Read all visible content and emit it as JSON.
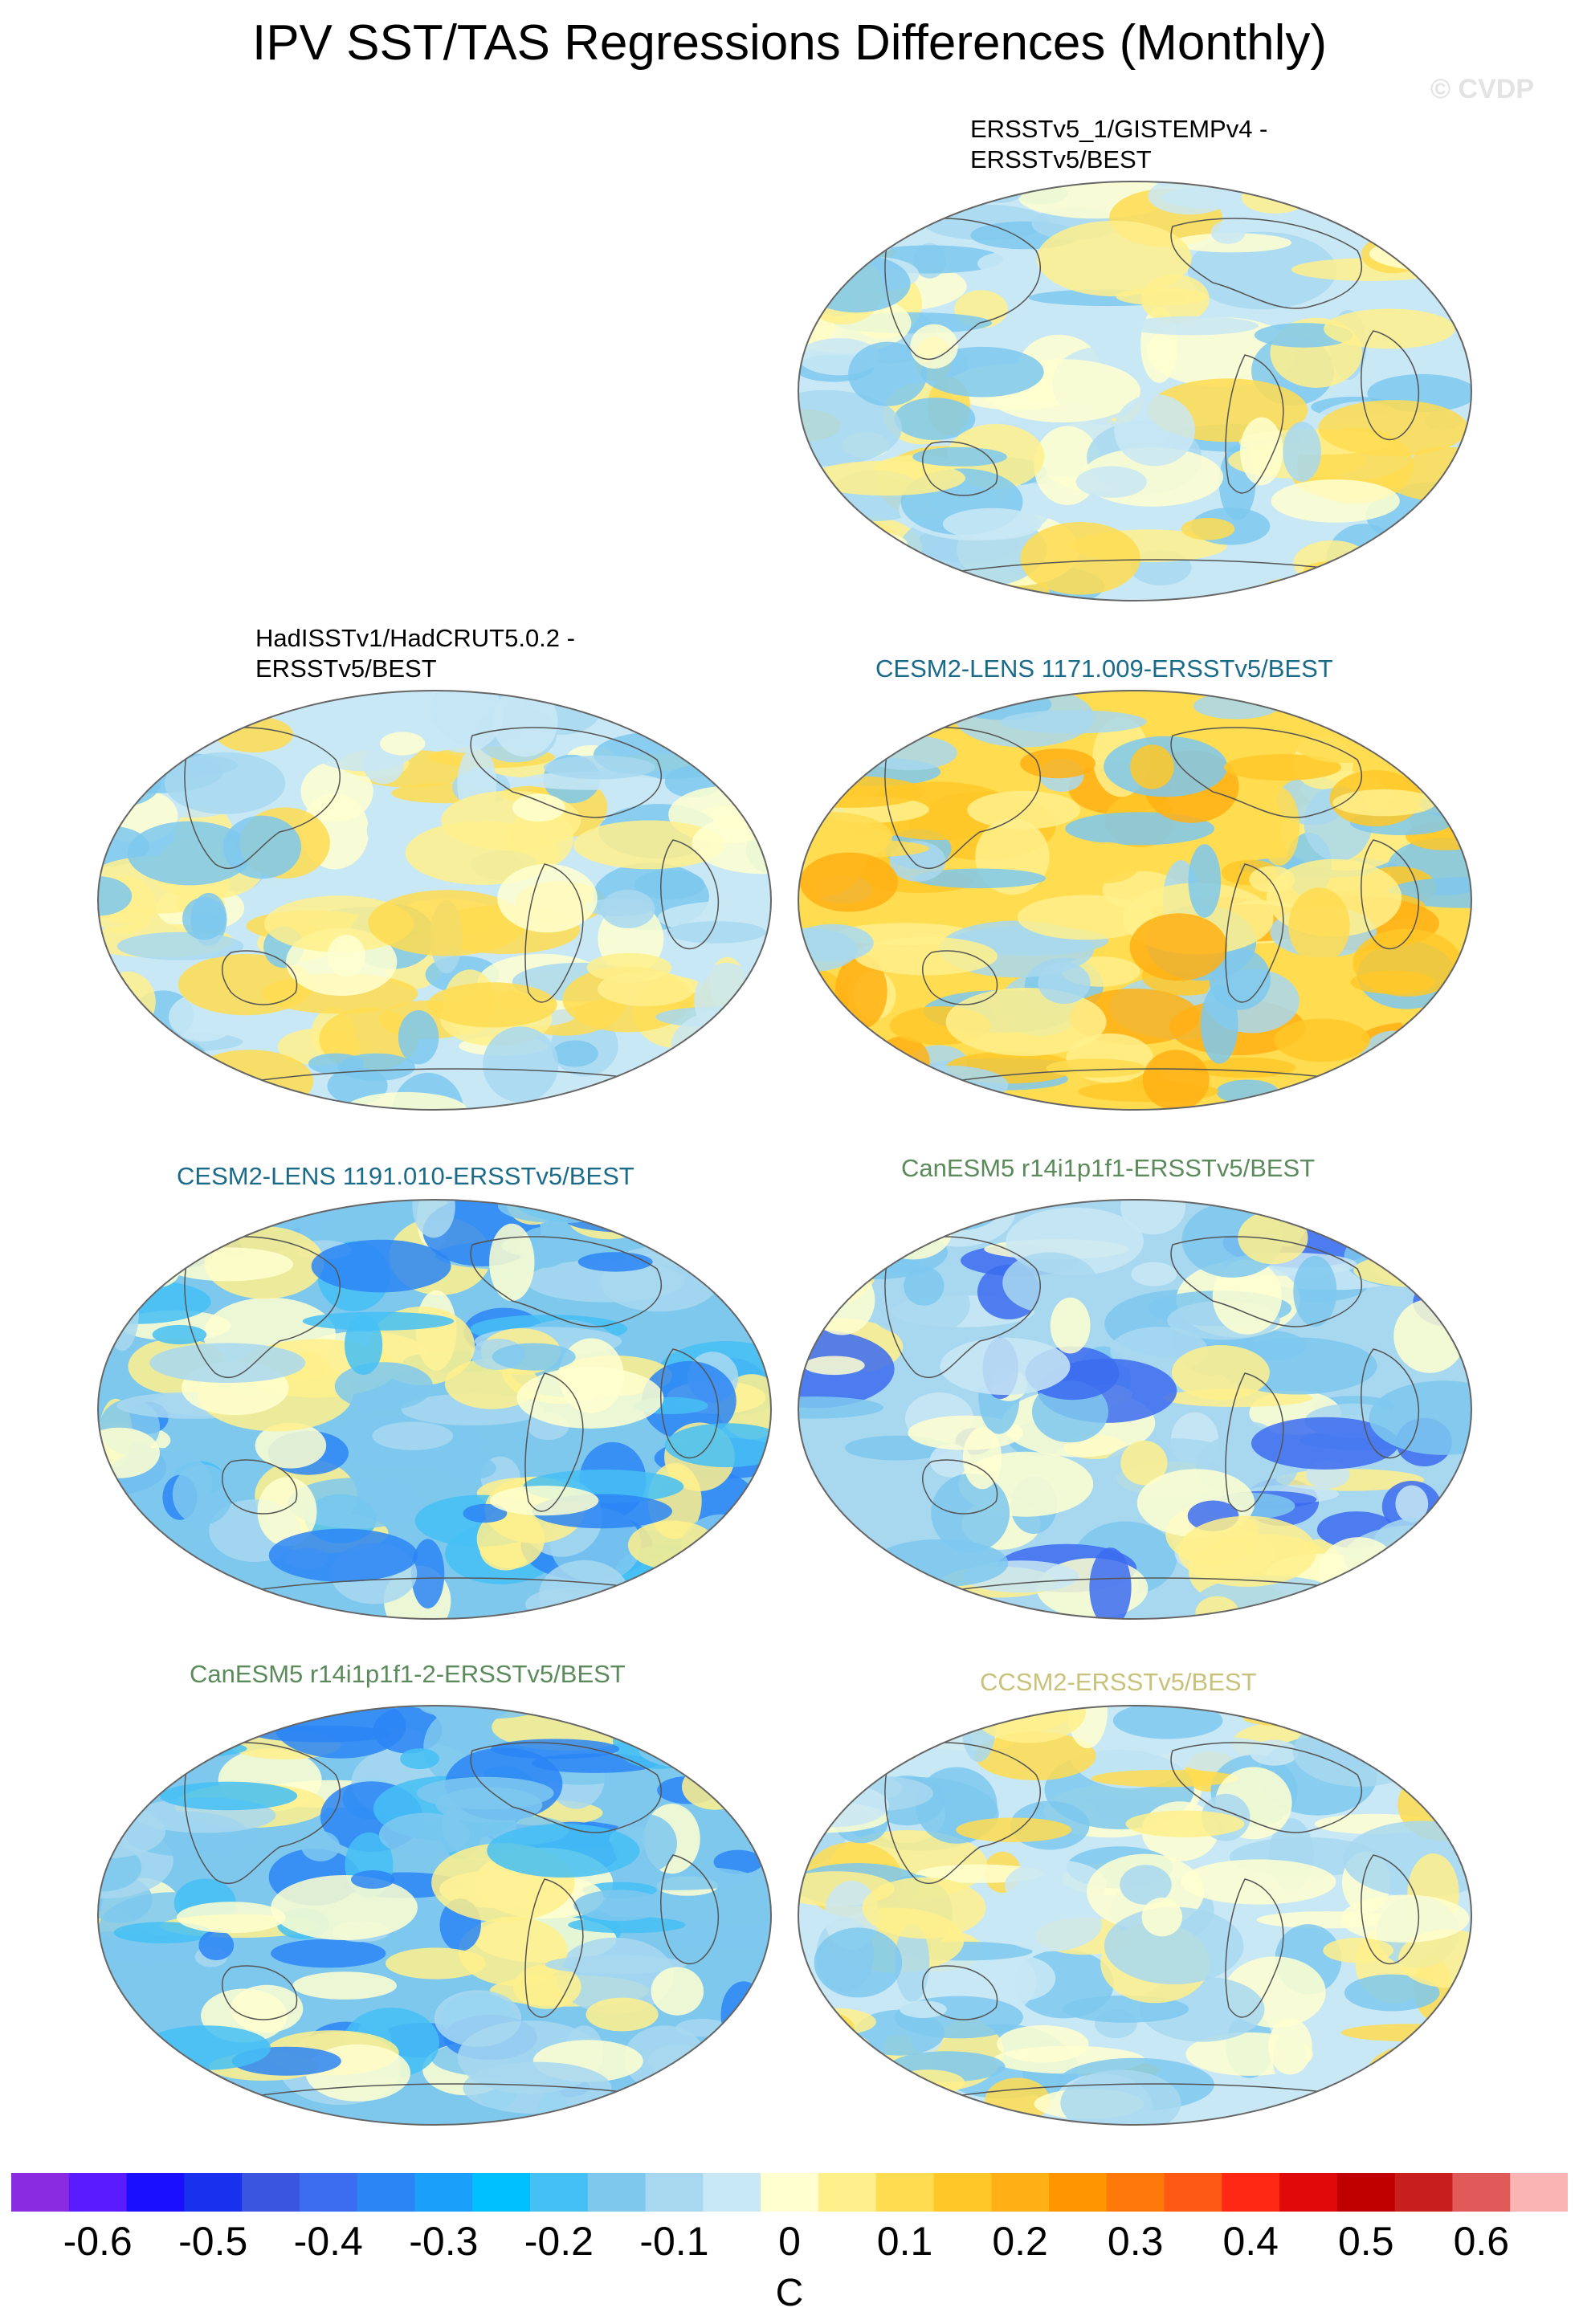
{
  "title": "IPV SST/TAS Regressions Differences (Monthly)",
  "credit": "© CVDP",
  "panels": [
    {
      "id": "p1",
      "title": "ERSSTv5_1/GISTEMPv4 -\nERSSTv5/BEST",
      "title_color": "#000000",
      "pattern": "mild"
    },
    {
      "id": "p2",
      "title": "HadISSTv1/HadCRUT5.0.2 -\nERSSTv5/BEST",
      "title_color": "#000000",
      "pattern": "mild"
    },
    {
      "id": "p3",
      "title": "CESM2-LENS 1171.009-ERSSTv5/BEST",
      "title_color": "#1a6b8a",
      "pattern": "warm"
    },
    {
      "id": "p4",
      "title": "CESM2-LENS 1191.010-ERSSTv5/BEST",
      "title_color": "#1a6b8a",
      "pattern": "cold-east"
    },
    {
      "id": "p5",
      "title": "CanESM5 r14i1p1f1-ERSSTv5/BEST",
      "title_color": "#5b8a5b",
      "pattern": "cold-north"
    },
    {
      "id": "p6",
      "title": "CanESM5 r14i1p1f1-2-ERSSTv5/BEST",
      "title_color": "#5b8a5b",
      "pattern": "cold-east"
    },
    {
      "id": "p7",
      "title": "CCSM2-ERSSTv5/BEST",
      "title_color": "#c9c27a",
      "pattern": "mild"
    }
  ],
  "colorbar": {
    "colors": [
      "#8a2be2",
      "#5a1bff",
      "#1a10ff",
      "#1a30ef",
      "#3a55e0",
      "#3c6cf0",
      "#2c85f5",
      "#1aa0fa",
      "#00bfff",
      "#45c0f5",
      "#7ec8ee",
      "#a8d8f0",
      "#c9e8f5",
      "#ffffd0",
      "#fff08c",
      "#ffdc50",
      "#ffc828",
      "#ffb014",
      "#ff9600",
      "#ff780a",
      "#ff5a14",
      "#ff2814",
      "#e00a0a",
      "#c00000",
      "#c81e1e",
      "#e05a5a",
      "#fab4b4"
    ],
    "ticks": [
      "-0.6",
      "-0.5",
      "-0.4",
      "-0.3",
      "-0.2",
      "-0.1",
      "0",
      "0.1",
      "0.2",
      "0.3",
      "0.4",
      "0.5",
      "0.6"
    ],
    "units": "C"
  }
}
